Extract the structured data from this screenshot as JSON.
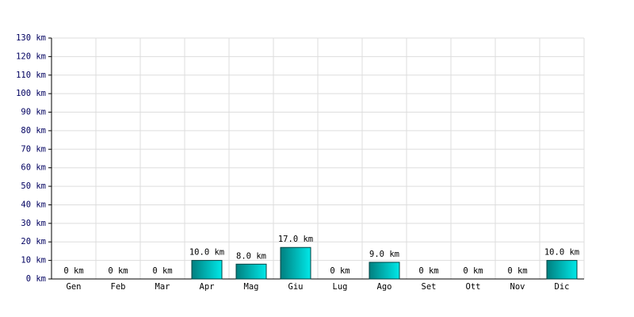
{
  "chart_data": {
    "type": "bar",
    "categories": [
      "Gen",
      "Feb",
      "Mar",
      "Apr",
      "Mag",
      "Giu",
      "Lug",
      "Ago",
      "Set",
      "Ott",
      "Nov",
      "Dic"
    ],
    "values": [
      0,
      0,
      0,
      10,
      8,
      17,
      0,
      9,
      0,
      0,
      0,
      10
    ],
    "value_labels": [
      "0 km",
      "0 km",
      "0 km",
      "10.0 km",
      "8.0 km",
      "17.0 km",
      "0 km",
      "9.0 km",
      "0 km",
      "0 km",
      "0 km",
      "10.0 km"
    ],
    "color": "#00e8e8",
    "ylim": [
      0,
      130
    ],
    "yticks": [
      {
        "value": 0,
        "label": "0 km"
      },
      {
        "value": 10,
        "label": "10 km"
      },
      {
        "value": 20,
        "label": "20 km"
      },
      {
        "value": 30,
        "label": "30 km"
      },
      {
        "value": 40,
        "label": "40 km"
      },
      {
        "value": 50,
        "label": "50 km"
      },
      {
        "value": 60,
        "label": "60 km"
      },
      {
        "value": 70,
        "label": "70 km"
      },
      {
        "value": 80,
        "label": "80 km"
      },
      {
        "value": 90,
        "label": "90 km"
      },
      {
        "value": 100,
        "label": "100 km"
      },
      {
        "value": 110,
        "label": "110 km"
      },
      {
        "value": 120,
        "label": "120 km"
      },
      {
        "value": 130,
        "label": "130 km"
      }
    ],
    "grid": true
  }
}
